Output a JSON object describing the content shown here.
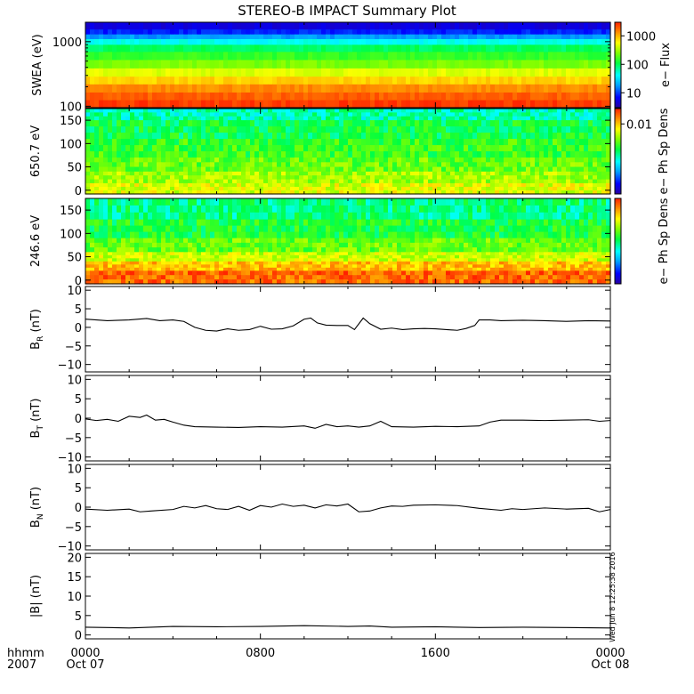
{
  "title": "STEREO-B IMPACT Summary Plot",
  "stamp": "Wed Jun  8 12:25:38 2016",
  "time_axis": {
    "row_label": "hhmm",
    "year_label": "2007",
    "ticks": [
      {
        "hour": 0,
        "time": "0000",
        "date": "Oct 07"
      },
      {
        "hour": 8,
        "time": "0800",
        "date": ""
      },
      {
        "hour": 16,
        "time": "1600",
        "date": ""
      },
      {
        "hour": 24,
        "time": "0000",
        "date": "Oct 08"
      }
    ],
    "range_hours": [
      0,
      24
    ]
  },
  "colors": {
    "spectrogram_scale": [
      "#2800a0",
      "#0000ff",
      "#00a0ff",
      "#00ffff",
      "#00ff40",
      "#80ff00",
      "#ffff00",
      "#ff9000",
      "#ff2000"
    ],
    "line": "#000000"
  },
  "chart_data": [
    {
      "type": "heatmap",
      "panel": "swea",
      "ylabel": "SWEA (eV)",
      "yscale": "log",
      "ylim": [
        95,
        2000
      ],
      "yticks": [
        {
          "value": 100,
          "label": "100"
        },
        {
          "value": 1000,
          "label": "1000"
        }
      ],
      "colorbar": {
        "label": "e− Flux",
        "scale": "log",
        "range": [
          3,
          3000
        ],
        "ticks": [
          {
            "value": 10,
            "label": "10"
          },
          {
            "value": 100,
            "label": "100"
          },
          {
            "value": 1000,
            "label": "1000"
          }
        ]
      },
      "bands": [
        {
          "energy": 1700,
          "color_level": 0.08
        },
        {
          "energy": 1400,
          "color_level": 0.15
        },
        {
          "energy": 1200,
          "color_level": 0.25
        },
        {
          "energy": 1000,
          "color_level": 0.38
        },
        {
          "energy": 800,
          "color_level": 0.48
        },
        {
          "energy": 600,
          "color_level": 0.55
        },
        {
          "energy": 450,
          "color_level": 0.62
        },
        {
          "energy": 330,
          "color_level": 0.72
        },
        {
          "energy": 250,
          "color_level": 0.8
        },
        {
          "energy": 190,
          "color_level": 0.88
        },
        {
          "energy": 140,
          "color_level": 0.93
        },
        {
          "energy": 110,
          "color_level": 0.97
        }
      ]
    },
    {
      "type": "heatmap",
      "panel": "pad650",
      "ylabel": "650.7 eV",
      "ylim": [
        -8,
        175
      ],
      "yticks": [
        {
          "value": 0,
          "label": "0"
        },
        {
          "value": 50,
          "label": "50"
        },
        {
          "value": 100,
          "label": "100"
        },
        {
          "value": 150,
          "label": "150"
        }
      ],
      "colorbar": {
        "label": "e− Ph Sp Dens",
        "range": [
          0,
          1
        ],
        "ticks": [
          {
            "value": 0.82,
            "label": "0.01"
          }
        ]
      },
      "bands": [
        {
          "angle_range": [
            150,
            175
          ],
          "color_level": 0.42
        },
        {
          "angle_range": [
            110,
            150
          ],
          "color_level": 0.5
        },
        {
          "angle_range": [
            70,
            110
          ],
          "color_level": 0.55
        },
        {
          "angle_range": [
            40,
            70
          ],
          "color_level": 0.6
        },
        {
          "angle_range": [
            15,
            40
          ],
          "color_level": 0.66
        },
        {
          "angle_range": [
            -8,
            15
          ],
          "color_level": 0.72
        }
      ]
    },
    {
      "type": "heatmap",
      "panel": "pad246",
      "ylabel": "246.6 eV",
      "ylim": [
        -8,
        175
      ],
      "yticks": [
        {
          "value": 0,
          "label": "0"
        },
        {
          "value": 50,
          "label": "50"
        },
        {
          "value": 100,
          "label": "100"
        },
        {
          "value": 150,
          "label": "150"
        }
      ],
      "colorbar": {
        "label": "e− Ph Sp Dens",
        "range": [
          0,
          1
        ],
        "ticks": []
      },
      "bands": [
        {
          "angle_range": [
            130,
            175
          ],
          "color_level": 0.46
        },
        {
          "angle_range": [
            90,
            130
          ],
          "color_level": 0.52
        },
        {
          "angle_range": [
            60,
            90
          ],
          "color_level": 0.6
        },
        {
          "angle_range": [
            40,
            60
          ],
          "color_level": 0.7
        },
        {
          "angle_range": [
            20,
            40
          ],
          "color_level": 0.82
        },
        {
          "angle_range": [
            -8,
            20
          ],
          "color_level": 0.92
        }
      ]
    },
    {
      "type": "line",
      "panel": "br",
      "ylabel": "B",
      "ylabel_sub": "R",
      "ylabel_unit": "(nT)",
      "ylim": [
        -12,
        11
      ],
      "yticks": [
        {
          "value": -10,
          "label": "−10"
        },
        {
          "value": -5,
          "label": "−5"
        },
        {
          "value": 0,
          "label": "0"
        },
        {
          "value": 5,
          "label": "5"
        },
        {
          "value": 10,
          "label": "10"
        }
      ],
      "x": [
        0,
        1,
        2,
        2.8,
        3.4,
        4,
        4.5,
        5,
        5.5,
        6,
        6.5,
        7,
        7.5,
        8,
        8.5,
        9,
        9.5,
        10,
        10.3,
        10.6,
        11,
        11.5,
        12,
        12.3,
        12.7,
        13,
        13.5,
        14,
        14.5,
        15,
        15.5,
        16,
        16.5,
        17,
        17.4,
        17.8,
        18,
        18.5,
        19,
        20,
        21,
        22,
        23,
        24
      ],
      "values": [
        2.2,
        1.8,
        2.0,
        2.4,
        1.8,
        2.0,
        1.6,
        0.0,
        -0.8,
        -1.0,
        -0.4,
        -0.8,
        -0.6,
        0.3,
        -0.5,
        -0.4,
        0.4,
        2.2,
        2.5,
        1.2,
        0.6,
        0.5,
        0.5,
        -0.6,
        2.5,
        1.0,
        -0.5,
        -0.2,
        -0.6,
        -0.4,
        -0.3,
        -0.4,
        -0.6,
        -0.8,
        -0.3,
        0.5,
        2.0,
        2.0,
        1.8,
        1.9,
        1.8,
        1.6,
        1.8,
        1.7
      ]
    },
    {
      "type": "line",
      "panel": "bt",
      "ylabel": "B",
      "ylabel_sub": "T",
      "ylabel_unit": "(nT)",
      "ylim": [
        -11,
        11
      ],
      "yticks": [
        {
          "value": -10,
          "label": "−10"
        },
        {
          "value": -5,
          "label": "−5"
        },
        {
          "value": 0,
          "label": "0"
        },
        {
          "value": 5,
          "label": "5"
        },
        {
          "value": 10,
          "label": "10"
        }
      ],
      "x": [
        0,
        0.5,
        1,
        1.5,
        2,
        2.5,
        2.8,
        3.2,
        3.6,
        4,
        4.5,
        5,
        6,
        7,
        8,
        9,
        10,
        10.5,
        11,
        11.5,
        12,
        12.5,
        13,
        13.5,
        14,
        15,
        16,
        17,
        18,
        18.5,
        19,
        20,
        21,
        22,
        23,
        23.5,
        24
      ],
      "values": [
        -0.2,
        -0.6,
        -0.3,
        -0.8,
        0.5,
        0.2,
        0.8,
        -0.5,
        -0.3,
        -1.0,
        -1.8,
        -2.2,
        -2.3,
        -2.4,
        -2.2,
        -2.3,
        -2.0,
        -2.6,
        -1.6,
        -2.2,
        -2.0,
        -2.3,
        -2.0,
        -0.8,
        -2.2,
        -2.3,
        -2.1,
        -2.2,
        -2.0,
        -1.0,
        -0.5,
        -0.5,
        -0.6,
        -0.5,
        -0.4,
        -0.8,
        -0.6
      ]
    },
    {
      "type": "line",
      "panel": "bn",
      "ylabel": "B",
      "ylabel_sub": "N",
      "ylabel_unit": "(nT)",
      "ylim": [
        -11,
        11
      ],
      "yticks": [
        {
          "value": -10,
          "label": "−10"
        },
        {
          "value": -5,
          "label": "−5"
        },
        {
          "value": 0,
          "label": "0"
        },
        {
          "value": 5,
          "label": "5"
        },
        {
          "value": 10,
          "label": "10"
        }
      ],
      "x": [
        0,
        1,
        2,
        2.5,
        3,
        4,
        4.5,
        5,
        5.5,
        6,
        6.5,
        7,
        7.5,
        8,
        8.5,
        9,
        9.5,
        10,
        10.5,
        11,
        11.5,
        12,
        12.5,
        13,
        13.5,
        14,
        14.5,
        15,
        16,
        17,
        18,
        19,
        19.5,
        20,
        21,
        22,
        23,
        23.5,
        24
      ],
      "values": [
        -0.5,
        -0.8,
        -0.5,
        -1.2,
        -1.0,
        -0.6,
        0.2,
        -0.2,
        0.4,
        -0.4,
        -0.6,
        0.2,
        -0.8,
        0.4,
        0.0,
        0.8,
        0.2,
        0.5,
        -0.2,
        0.6,
        0.3,
        0.8,
        -1.2,
        -1.0,
        -0.2,
        0.3,
        0.2,
        0.5,
        0.6,
        0.4,
        -0.3,
        -0.8,
        -0.4,
        -0.6,
        -0.2,
        -0.5,
        -0.3,
        -1.2,
        -0.6
      ]
    },
    {
      "type": "line",
      "panel": "bmag",
      "ylabel": "|B|",
      "ylabel_unit": "(nT)",
      "ylim": [
        -1,
        21
      ],
      "yticks": [
        {
          "value": 0,
          "label": "0"
        },
        {
          "value": 5,
          "label": "5"
        },
        {
          "value": 10,
          "label": "10"
        },
        {
          "value": 15,
          "label": "15"
        },
        {
          "value": 20,
          "label": "20"
        }
      ],
      "x": [
        0,
        2,
        3,
        4,
        6,
        8,
        10,
        12,
        13,
        14,
        16,
        18,
        20,
        22,
        24
      ],
      "values": [
        2.0,
        1.8,
        2.0,
        2.2,
        2.1,
        2.2,
        2.4,
        2.2,
        2.3,
        2.0,
        2.1,
        1.9,
        2.0,
        1.9,
        1.8
      ]
    }
  ]
}
